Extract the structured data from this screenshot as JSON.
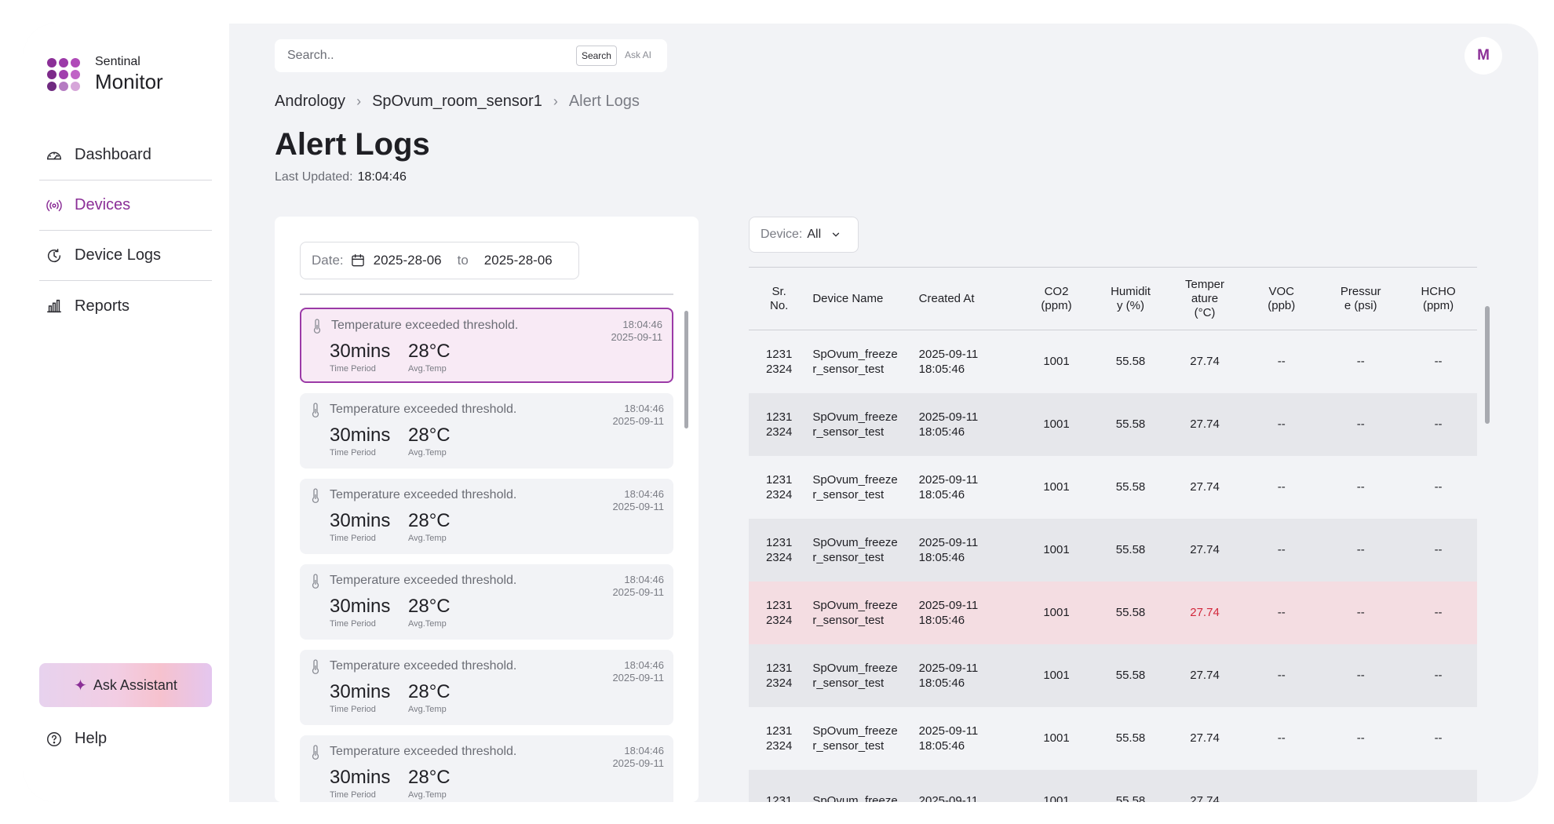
{
  "brand": {
    "line1": "Sentinal",
    "line2": "Monitor",
    "dot_colors": [
      "#8b2f97",
      "#9c3aa8",
      "#b04ab8",
      "#7d2a8a",
      "#a13fae",
      "#c064c6",
      "#6f2a80",
      "#b57bc2",
      "#d6a6d9"
    ]
  },
  "nav": [
    {
      "label": "Dashboard",
      "icon": "gauge-icon",
      "active": false
    },
    {
      "label": "Devices",
      "icon": "broadcast-icon",
      "active": true
    },
    {
      "label": "Device Logs",
      "icon": "clock-refresh-icon",
      "active": false
    },
    {
      "label": "Reports",
      "icon": "bar-chart-icon",
      "active": false
    }
  ],
  "assistant": {
    "label": "Ask Assistant",
    "icon": "sparkle-icon"
  },
  "help": {
    "label": "Help",
    "icon": "question-circle-icon"
  },
  "search": {
    "placeholder": "Search..",
    "search_label": "Search",
    "ask_label": "Ask AI"
  },
  "avatar": {
    "initial": "M"
  },
  "breadcrumb": [
    "Andrology",
    "SpOvum_room_sensor1",
    "Alert Logs"
  ],
  "page": {
    "title": "Alert Logs",
    "updated_label": "Last Updated:",
    "updated_value": "18:04:46"
  },
  "date_filter": {
    "label": "Date:",
    "from": "2025-28-06",
    "to_label": "to",
    "to": "2025-28-06"
  },
  "alerts": [
    {
      "message": "Temperature exceeded threshold.",
      "time": "18:04:46",
      "date": "2025-09-11",
      "period": "30mins",
      "period_label": "Time Period",
      "avg": "28°C",
      "avg_label": "Avg.Temp",
      "selected": true
    },
    {
      "message": "Temperature exceeded threshold.",
      "time": "18:04:46",
      "date": "2025-09-11",
      "period": "30mins",
      "period_label": "Time Period",
      "avg": "28°C",
      "avg_label": "Avg.Temp",
      "selected": false
    },
    {
      "message": "Temperature exceeded threshold.",
      "time": "18:04:46",
      "date": "2025-09-11",
      "period": "30mins",
      "period_label": "Time Period",
      "avg": "28°C",
      "avg_label": "Avg.Temp",
      "selected": false
    },
    {
      "message": "Temperature exceeded threshold.",
      "time": "18:04:46",
      "date": "2025-09-11",
      "period": "30mins",
      "period_label": "Time Period",
      "avg": "28°C",
      "avg_label": "Avg.Temp",
      "selected": false
    },
    {
      "message": "Temperature exceeded threshold.",
      "time": "18:04:46",
      "date": "2025-09-11",
      "period": "30mins",
      "period_label": "Time Period",
      "avg": "28°C",
      "avg_label": "Avg.Temp",
      "selected": false
    },
    {
      "message": "Temperature exceeded threshold.",
      "time": "18:04:46",
      "date": "2025-09-11",
      "period": "30mins",
      "period_label": "Time Period",
      "avg": "28°C",
      "avg_label": "Avg.Temp",
      "selected": false
    }
  ],
  "device_filter": {
    "label": "Device:",
    "value": "All"
  },
  "table": {
    "columns": [
      {
        "line1": "Sr.",
        "line2": "No.",
        "line3": ""
      },
      {
        "line1": "Device Name",
        "line2": "",
        "line3": ""
      },
      {
        "line1": "Created At",
        "line2": "",
        "line3": ""
      },
      {
        "line1": "CO2",
        "line2": "(ppm)",
        "line3": ""
      },
      {
        "line1": "Humidit",
        "line2": "y (%)",
        "line3": ""
      },
      {
        "line1": "Temper",
        "line2": "ature",
        "line3": "(°C)"
      },
      {
        "line1": "VOC",
        "line2": "(ppb)",
        "line3": ""
      },
      {
        "line1": "Pressur",
        "line2": "e (psi)",
        "line3": ""
      },
      {
        "line1": "HCHO",
        "line2": "(ppm)",
        "line3": ""
      }
    ],
    "rows": [
      {
        "sr1": "1231",
        "sr2": "2324",
        "name1": "SpOvum_freeze",
        "name2": "r_sensor_test",
        "date": "2025-09-11",
        "time": "18:05:46",
        "co2": "1001",
        "humidity": "55.58",
        "temp": "27.74",
        "voc": "--",
        "pressure": "--",
        "hcho": "--",
        "style": "plain"
      },
      {
        "sr1": "1231",
        "sr2": "2324",
        "name1": "SpOvum_freeze",
        "name2": "r_sensor_test",
        "date": "2025-09-11",
        "time": "18:05:46",
        "co2": "1001",
        "humidity": "55.58",
        "temp": "27.74",
        "voc": "--",
        "pressure": "--",
        "hcho": "--",
        "style": "alt"
      },
      {
        "sr1": "1231",
        "sr2": "2324",
        "name1": "SpOvum_freeze",
        "name2": "r_sensor_test",
        "date": "2025-09-11",
        "time": "18:05:46",
        "co2": "1001",
        "humidity": "55.58",
        "temp": "27.74",
        "voc": "--",
        "pressure": "--",
        "hcho": "--",
        "style": "plain"
      },
      {
        "sr1": "1231",
        "sr2": "2324",
        "name1": "SpOvum_freeze",
        "name2": "r_sensor_test",
        "date": "2025-09-11",
        "time": "18:05:46",
        "co2": "1001",
        "humidity": "55.58",
        "temp": "27.74",
        "voc": "--",
        "pressure": "--",
        "hcho": "--",
        "style": "alt"
      },
      {
        "sr1": "1231",
        "sr2": "2324",
        "name1": "SpOvum_freeze",
        "name2": "r_sensor_test",
        "date": "2025-09-11",
        "time": "18:05:46",
        "co2": "1001",
        "humidity": "55.58",
        "temp": "27.74",
        "voc": "--",
        "pressure": "--",
        "hcho": "--",
        "style": "hl"
      },
      {
        "sr1": "1231",
        "sr2": "2324",
        "name1": "SpOvum_freeze",
        "name2": "r_sensor_test",
        "date": "2025-09-11",
        "time": "18:05:46",
        "co2": "1001",
        "humidity": "55.58",
        "temp": "27.74",
        "voc": "--",
        "pressure": "--",
        "hcho": "--",
        "style": "alt"
      },
      {
        "sr1": "1231",
        "sr2": "2324",
        "name1": "SpOvum_freeze",
        "name2": "r_sensor_test",
        "date": "2025-09-11",
        "time": "18:05:46",
        "co2": "1001",
        "humidity": "55.58",
        "temp": "27.74",
        "voc": "--",
        "pressure": "--",
        "hcho": "--",
        "style": "plain"
      },
      {
        "sr1": "1231",
        "sr2": "",
        "name1": "SpOvum_freeze",
        "name2": "",
        "date": "2025-09-11",
        "time": "",
        "co2": "1001",
        "humidity": "55.58",
        "temp": "27.74",
        "voc": "",
        "pressure": "",
        "hcho": "",
        "style": "alt"
      }
    ]
  },
  "colors": {
    "accent": "#8b2f97",
    "alert_red": "#d2283c",
    "highlight_row": "#f4dde2",
    "selected_card": "#f8eaf5"
  }
}
